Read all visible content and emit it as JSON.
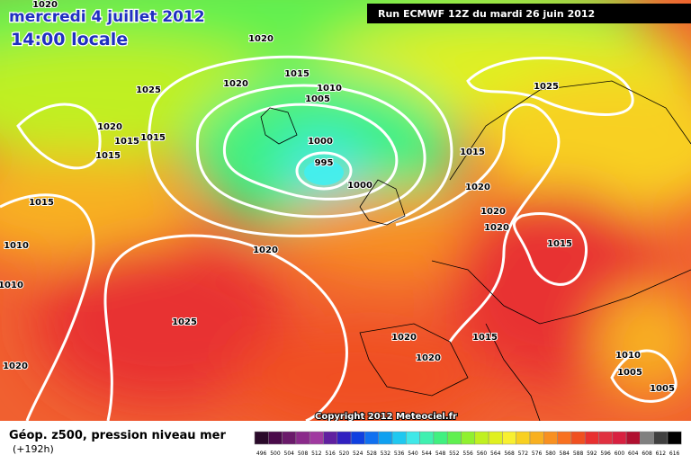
{
  "header": {
    "date": "mercredi 4 juillet 2012",
    "time": "14:00 locale",
    "run": "Run ECMWF 12Z du mardi 26 juin 2012"
  },
  "map": {
    "copyright": "Copyright 2012 Meteociel.fr",
    "isobar_labels": [
      "1020",
      "1020",
      "1025",
      "1020",
      "1015",
      "1010",
      "1005",
      "1020",
      "1015",
      "1015",
      "1015",
      "1000",
      "995",
      "1000",
      "1025",
      "1015",
      "1020",
      "1020",
      "1020",
      "1015",
      "1020",
      "1015",
      "1010",
      "1010",
      "1025",
      "1020",
      "1015",
      "1020",
      "1010",
      "1005",
      "1005",
      "1020"
    ]
  },
  "legend": {
    "title": "Géop. z500, pression niveau mer",
    "lead": "(+192h)",
    "scale": [
      496,
      500,
      504,
      508,
      512,
      516,
      520,
      524,
      528,
      532,
      536,
      540,
      544,
      548,
      552,
      556,
      560,
      564,
      568,
      572,
      576,
      580,
      584,
      588,
      592,
      596,
      600,
      604,
      608,
      612,
      616
    ],
    "colors": [
      "#2a0a2a",
      "#4a0a4a",
      "#6a1a6a",
      "#8a2a8a",
      "#a03aa0",
      "#6020a0",
      "#3020c0",
      "#1040e0",
      "#1070f0",
      "#10a0f0",
      "#20c8f0",
      "#40e8e8",
      "#40f0b0",
      "#40f080",
      "#60f050",
      "#90f030",
      "#c0f020",
      "#e0f020",
      "#f8f030",
      "#f8d020",
      "#f8b020",
      "#f89020",
      "#f87020",
      "#f05020",
      "#e83030",
      "#e03040",
      "#d82040",
      "#b01030",
      "#808080",
      "#404040",
      "#000000"
    ]
  }
}
